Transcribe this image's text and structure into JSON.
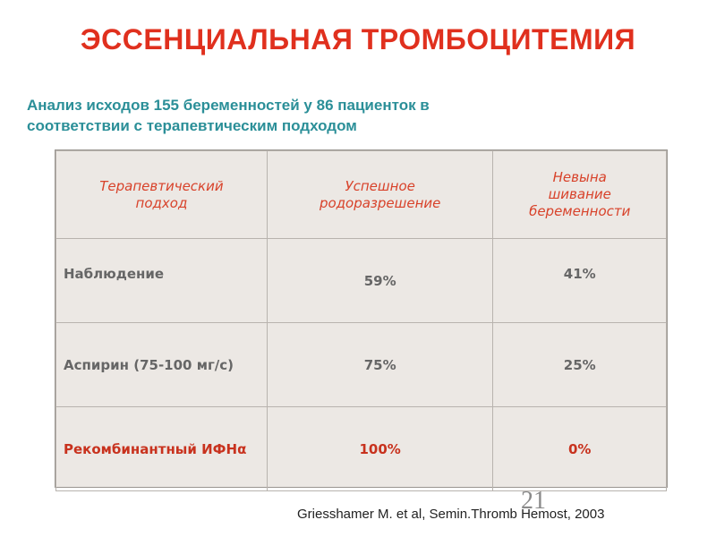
{
  "slide": {
    "title": "ЭССЕНЦИАЛЬНАЯ ТРОМБОЦИТЕМИЯ",
    "subtitle": "Анализ исходов 155 беременностей у 86 пациенток в соответствии с терапевтическим подходом",
    "page_number": "21",
    "citation": "Griesshamer M. et al, Semin.Thromb Hemost, 2003"
  },
  "table": {
    "headers": [
      "Терапевтический\nподход",
      "Успешное\nродоразрешение",
      "Невына\nшивание\nбеременности"
    ],
    "rows": [
      {
        "label": "Наблюдение",
        "success": "59%",
        "loss": "41%"
      },
      {
        "label": "Аспирин (75-100 мг/с)",
        "success": "75%",
        "loss": "25%"
      },
      {
        "label": "Рекомбинантный ИФНα",
        "success": "100%",
        "loss": "0%"
      }
    ],
    "colors": {
      "header_text": "#d8422a",
      "body_text": "#666666",
      "highlight_text": "#c8321e",
      "background": "#ece8e4"
    }
  }
}
